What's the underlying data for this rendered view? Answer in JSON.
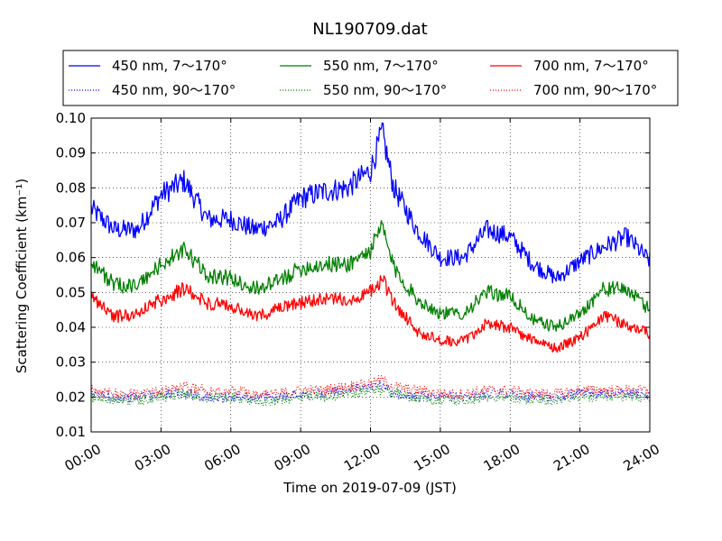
{
  "chart_data": {
    "type": "line",
    "title": "NL190709.dat",
    "xlabel": "Time on 2019-07-09 (JST)",
    "ylabel": "Scattering Coefficient (km⁻¹)",
    "xlim": [
      "00:00",
      "24:00"
    ],
    "ylim": [
      0.01,
      0.1
    ],
    "x_ticks": [
      "00:00",
      "03:00",
      "06:00",
      "09:00",
      "12:00",
      "15:00",
      "18:00",
      "21:00",
      "24:00"
    ],
    "y_ticks": [
      "0.01",
      "0.02",
      "0.03",
      "0.04",
      "0.05",
      "0.06",
      "0.07",
      "0.08",
      "0.09",
      "0.10"
    ],
    "grid": true,
    "legend": {
      "placement": "top, above plot",
      "columns": 3
    },
    "x": [
      "00:00",
      "01:00",
      "02:00",
      "03:00",
      "04:00",
      "05:00",
      "06:00",
      "07:00",
      "08:00",
      "09:00",
      "10:00",
      "11:00",
      "12:00",
      "12:30",
      "13:00",
      "14:00",
      "15:00",
      "16:00",
      "17:00",
      "18:00",
      "19:00",
      "20:00",
      "21:00",
      "22:00",
      "23:00",
      "24:00"
    ],
    "series": [
      {
        "name": "450 nm, 7～170°",
        "color": "#0000ff",
        "style": "solid",
        "values": [
          0.074,
          0.068,
          0.068,
          0.078,
          0.082,
          0.071,
          0.071,
          0.068,
          0.07,
          0.077,
          0.079,
          0.08,
          0.085,
          0.096,
          0.08,
          0.068,
          0.06,
          0.06,
          0.068,
          0.066,
          0.058,
          0.054,
          0.059,
          0.063,
          0.066,
          0.059
        ]
      },
      {
        "name": "450 nm, 90～170°",
        "color": "#0000ff",
        "style": "dotted",
        "values": [
          0.021,
          0.02,
          0.02,
          0.021,
          0.021,
          0.02,
          0.02,
          0.02,
          0.02,
          0.021,
          0.021,
          0.022,
          0.023,
          0.023,
          0.021,
          0.02,
          0.02,
          0.02,
          0.021,
          0.021,
          0.02,
          0.02,
          0.021,
          0.021,
          0.021,
          0.021
        ]
      },
      {
        "name": "550 nm, 7～170°",
        "color": "#008000",
        "style": "solid",
        "values": [
          0.059,
          0.052,
          0.052,
          0.058,
          0.062,
          0.055,
          0.054,
          0.051,
          0.053,
          0.057,
          0.058,
          0.058,
          0.062,
          0.069,
          0.057,
          0.048,
          0.044,
          0.044,
          0.05,
          0.049,
          0.042,
          0.04,
          0.044,
          0.051,
          0.051,
          0.045
        ]
      },
      {
        "name": "550 nm, 90～170°",
        "color": "#008000",
        "style": "dotted",
        "values": [
          0.02,
          0.019,
          0.019,
          0.02,
          0.021,
          0.02,
          0.02,
          0.019,
          0.019,
          0.02,
          0.02,
          0.021,
          0.022,
          0.022,
          0.021,
          0.02,
          0.019,
          0.019,
          0.02,
          0.02,
          0.019,
          0.019,
          0.02,
          0.02,
          0.02,
          0.02
        ]
      },
      {
        "name": "700 nm, 7～170°",
        "color": "#ff0000",
        "style": "solid",
        "values": [
          0.049,
          0.043,
          0.044,
          0.048,
          0.051,
          0.047,
          0.046,
          0.043,
          0.045,
          0.047,
          0.048,
          0.048,
          0.05,
          0.054,
          0.047,
          0.039,
          0.036,
          0.036,
          0.041,
          0.04,
          0.036,
          0.034,
          0.037,
          0.043,
          0.041,
          0.038
        ]
      },
      {
        "name": "700 nm, 90～170°",
        "color": "#ff0000",
        "style": "dotted",
        "values": [
          0.022,
          0.021,
          0.021,
          0.022,
          0.023,
          0.022,
          0.022,
          0.021,
          0.021,
          0.022,
          0.022,
          0.023,
          0.024,
          0.025,
          0.023,
          0.022,
          0.021,
          0.021,
          0.022,
          0.022,
          0.021,
          0.021,
          0.022,
          0.022,
          0.022,
          0.022
        ]
      }
    ]
  }
}
